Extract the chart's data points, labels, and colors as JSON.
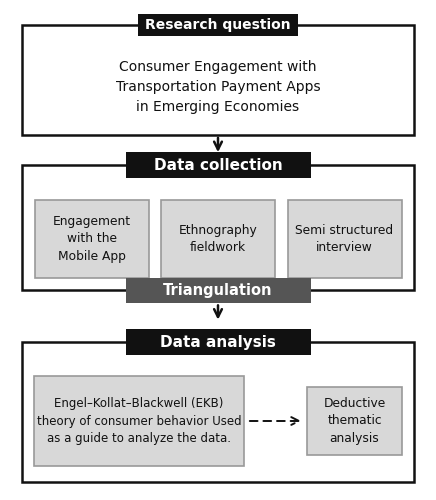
{
  "bg_color": "#ffffff",
  "research_question": {
    "label": "Research question",
    "label_bg": "#111111",
    "label_fg": "#ffffff",
    "body_text": "Consumer Engagement with\nTransportation Payment Apps\nin Emerging Economies",
    "body_bg": "#ffffff",
    "border_color": "#111111"
  },
  "data_collection": {
    "label": "Data collection",
    "label_bg": "#111111",
    "label_fg": "#ffffff",
    "outer_bg": "#ffffff",
    "outer_border": "#111111",
    "items": [
      "Engagement\nwith the\nMobile App",
      "Ethnography\nfieldwork",
      "Semi structured\ninterview"
    ],
    "item_bg": "#d8d8d8",
    "item_border": "#999999"
  },
  "triangulation": {
    "label": "Triangulation",
    "label_bg": "#555555",
    "label_fg": "#ffffff"
  },
  "data_analysis": {
    "label": "Data analysis",
    "label_bg": "#111111",
    "label_fg": "#ffffff",
    "outer_bg": "#ffffff",
    "outer_border": "#111111",
    "left_text": "Engel–Kollat–Blackwell (EKB)\ntheory of consumer behavior Used\nas a guide to analyze the data.",
    "right_text": "Deductive\nthematic\nanalysis",
    "item_bg": "#d8d8d8",
    "item_border": "#999999"
  },
  "arrow_color": "#111111"
}
